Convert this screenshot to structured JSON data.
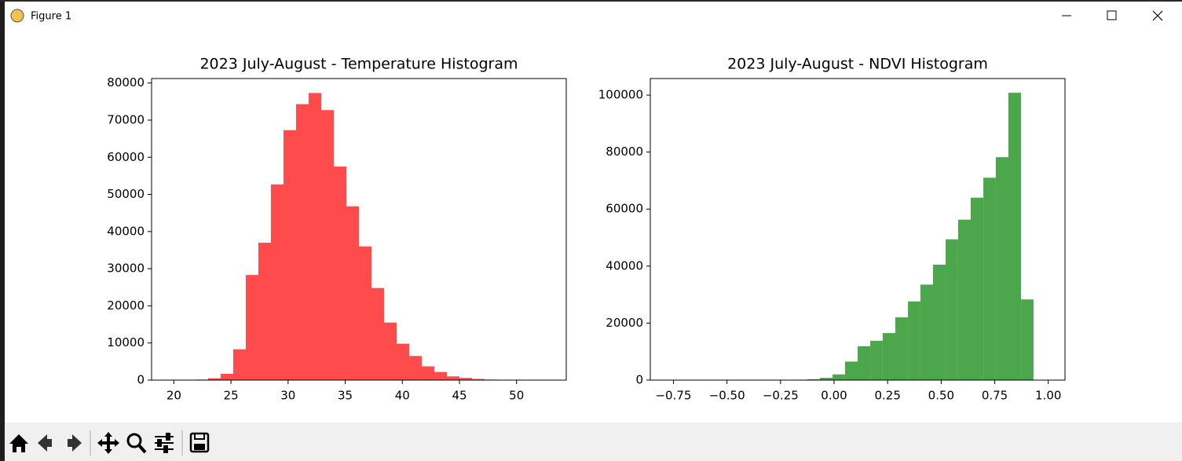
{
  "window": {
    "title": "Figure 1"
  },
  "chart_data": [
    {
      "type": "histogram",
      "title": "2023 July-August - Temperature Histogram",
      "color": "#ff4b4b",
      "bins": [
        19.7,
        20.8,
        21.9,
        23.0,
        24.1,
        25.2,
        26.3,
        27.4,
        28.5,
        29.6,
        30.7,
        31.8,
        32.9,
        34.0,
        35.1,
        36.2,
        37.3,
        38.4,
        39.5,
        40.6,
        41.7,
        42.8,
        43.9,
        45.0,
        46.1,
        47.2,
        48.3,
        49.4,
        50.5,
        51.6,
        52.7
      ],
      "values": [
        5,
        20,
        150,
        500,
        1700,
        8300,
        28300,
        37000,
        52700,
        67300,
        74300,
        77300,
        72700,
        57500,
        46800,
        36000,
        24800,
        15500,
        9800,
        6500,
        3700,
        2200,
        1000,
        600,
        300,
        150,
        60,
        20,
        5,
        2
      ],
      "xlim": [
        18.05,
        54.35
      ],
      "xticks": [
        20,
        25,
        30,
        35,
        40,
        45,
        50
      ],
      "ylim": [
        0,
        81200
      ],
      "yticks": [
        0,
        10000,
        20000,
        30000,
        40000,
        50000,
        60000,
        70000,
        80000
      ],
      "grid": false
    },
    {
      "type": "histogram",
      "title": "2023 July-August - NDVI Histogram",
      "color": "#4ca64c",
      "bins": [
        -0.77,
        -0.711,
        -0.653,
        -0.594,
        -0.535,
        -0.477,
        -0.418,
        -0.359,
        -0.301,
        -0.242,
        -0.183,
        -0.125,
        -0.066,
        -0.007,
        0.051,
        0.11,
        0.169,
        0.227,
        0.286,
        0.345,
        0.403,
        0.462,
        0.521,
        0.579,
        0.638,
        0.697,
        0.755,
        0.814,
        0.873,
        0.931,
        0.99
      ],
      "values": [
        1,
        1,
        1,
        2,
        3,
        5,
        10,
        20,
        40,
        80,
        150,
        300,
        800,
        2000,
        6500,
        11900,
        13800,
        16500,
        22000,
        27600,
        33500,
        40500,
        49400,
        56300,
        64000,
        71000,
        78200,
        100800,
        28300,
        50
      ],
      "xlim": [
        -0.858,
        1.078
      ],
      "xticks": [
        {
          "value": -0.75,
          "label": "−0.75"
        },
        {
          "value": -0.5,
          "label": "−0.50"
        },
        {
          "value": -0.25,
          "label": "−0.25"
        },
        {
          "value": 0,
          "label": "0.00"
        },
        {
          "value": 0.25,
          "label": "0.25"
        },
        {
          "value": 0.5,
          "label": "0.50"
        },
        {
          "value": 0.75,
          "label": "0.75"
        },
        {
          "value": 1,
          "label": "1.00"
        }
      ],
      "ylim": [
        0,
        105800
      ],
      "yticks": [
        0,
        20000,
        40000,
        60000,
        80000,
        100000
      ],
      "grid": false
    }
  ]
}
